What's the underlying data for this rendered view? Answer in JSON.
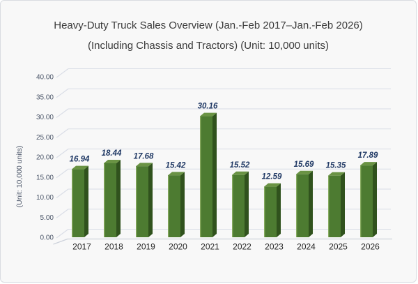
{
  "window": {
    "background": "#f8f8f8",
    "border_color": "#d9dce1"
  },
  "chart_data": {
    "type": "bar",
    "style": "3d-column",
    "title": "Heavy-Duty Truck Sales Overview (Jan.-Feb 2017–Jan.-Feb 2026)",
    "subtitle": "(Including Chassis and Tractors) (Unit: 10,000 units)",
    "categories": [
      "2017",
      "2018",
      "2019",
      "2020",
      "2021",
      "2022",
      "2023",
      "2024",
      "2025",
      "2026"
    ],
    "values": [
      16.94,
      18.44,
      17.68,
      15.42,
      30.16,
      15.52,
      12.59,
      15.69,
      15.35,
      17.89
    ],
    "xlabel": "",
    "ylabel": "(Unit: 10,000 units)",
    "ylim": [
      0,
      40
    ],
    "ytick_step": 5,
    "ytick_labels": [
      "0.00",
      "5.00",
      "10.00",
      "15.00",
      "20.00",
      "25.00",
      "30.00",
      "35.00",
      "40.00"
    ],
    "grid": true,
    "legend": "none",
    "data_labels": true,
    "colors": {
      "bar_front": "#4d7b31",
      "bar_side": "#30521d",
      "bar_top": "#6a9344",
      "bar_highlight": "#90b167",
      "value_label": "#1f3864",
      "gridline": "#d9dde6",
      "floor_line": "#cdd2db",
      "y_tick_label": "#4a5568",
      "x_tick_label": "#262626",
      "title": "#3a3a3a"
    }
  }
}
